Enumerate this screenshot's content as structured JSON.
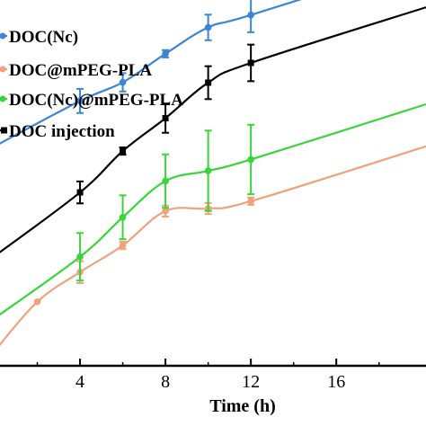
{
  "chart_data": {
    "type": "line",
    "xlabel": "Time (h)",
    "ylabel": "",
    "xlim": [
      0,
      20.2
    ],
    "ylim": [
      0,
      100
    ],
    "grid": false,
    "legend_position": "top-left",
    "x_ticks": [
      4,
      8,
      12,
      16
    ],
    "series": [
      {
        "name": "DOC(Nc)",
        "color": "#3a86d4",
        "marker": "circle",
        "x": [
          0,
          4,
          6,
          8,
          10,
          12,
          20.2
        ],
        "y": [
          60,
          72.4,
          77.5,
          85.3,
          92.5,
          95.9,
          111
        ],
        "err": [
          null,
          3.3,
          2.5,
          1.0,
          3.5,
          4.7,
          null
        ]
      },
      {
        "name": "DOC@mPEG-PLA",
        "color": "#f0a27a",
        "marker": "circle",
        "x": [
          0,
          2,
          4,
          6,
          8,
          10,
          12,
          20.2
        ],
        "y": [
          4,
          17.5,
          25.6,
          32.9,
          42.3,
          43.0,
          45.0,
          60
        ],
        "err": [
          null,
          null,
          3.0,
          1.0,
          1.5,
          1.5,
          1.0,
          null
        ]
      },
      {
        "name": "DOC(Nc)@mPEG-PLA",
        "color": "#3ad53a",
        "marker": "circle",
        "x": [
          0,
          4,
          6,
          8,
          10,
          12,
          20.2
        ],
        "y": [
          13,
          29.8,
          40.6,
          50.5,
          53.3,
          56.4,
          71.5
        ],
        "err": [
          null,
          6.5,
          6.0,
          7.3,
          11.0,
          9.5,
          null
        ]
      },
      {
        "name": "DOC injection",
        "color": "#000000",
        "marker": "square",
        "x": [
          0,
          4,
          6,
          8,
          10,
          12,
          20.2
        ],
        "y": [
          30,
          47.4,
          58.7,
          67.7,
          77.4,
          82.8,
          98
        ],
        "err": [
          null,
          3.0,
          1.0,
          4.0,
          4.5,
          5.0,
          null
        ]
      }
    ]
  }
}
